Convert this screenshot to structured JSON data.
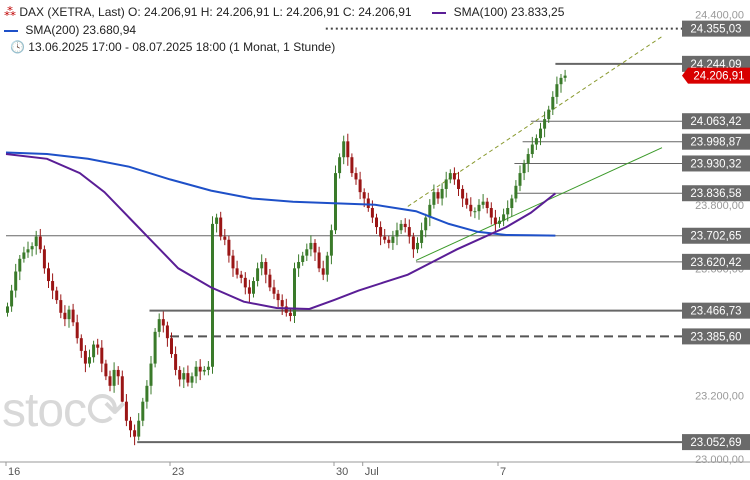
{
  "header": {
    "instrument": "DAX (XETRA, Last)",
    "ohlc": "O: 24.206,91  H: 24.206,91  L: 24.206,91  C: 24.206,91",
    "sma100_label": "SMA(100)",
    "sma100_value": "23.833,25",
    "sma200_label": "SMA(200)",
    "sma200_value": "23.680,94",
    "range": "13.06.2025 17:00 - 08.07.2025 18:00",
    "interval": "(1 Monat, 1 Stunde)"
  },
  "watermark": "stoc⟳",
  "colors": {
    "up": "#3a7a2a",
    "down": "#9a1515",
    "sma100": "#5a1e96",
    "sma200": "#1e50c8",
    "level": "#666666",
    "trend_solid": "#3c9a2a",
    "trend_dashed": "#8a9a30",
    "current": "#d80000"
  },
  "chart_data": {
    "type": "candlestick",
    "y_axis": {
      "ticks": [
        23000,
        23200,
        23400,
        23600,
        23800,
        24000,
        24200,
        24400
      ],
      "tick_labels": [
        "23.000,00",
        "23.200,00",
        "23.400,00",
        "23.600,00",
        "23.800,00",
        "24.000,00",
        "24.200,00",
        "24.400,00"
      ],
      "range": [
        22990,
        24420
      ]
    },
    "x_axis": {
      "labels": [
        {
          "text": "16",
          "bar": 0
        },
        {
          "text": "23",
          "bar": 40
        },
        {
          "text": "30",
          "bar": 80
        },
        {
          "text": "Jul",
          "bar": 87
        },
        {
          "text": "7",
          "bar": 120
        }
      ],
      "bars_total": 145
    },
    "current_price": 24206.91,
    "current_label": "24.206,91",
    "levels": [
      {
        "value": 24355.03,
        "label": "24.355,03",
        "style": "dotted",
        "from_bar": 78
      },
      {
        "value": 24244.09,
        "label": "24.244,09",
        "style": "solid",
        "from_bar": 134
      },
      {
        "value": 24063.42,
        "label": "24.063,42",
        "style": "solid",
        "from_bar": 128
      },
      {
        "value": 23998.87,
        "label": "23.998,87",
        "style": "solid",
        "from_bar": 126
      },
      {
        "value": 23930.32,
        "label": "23.930,32",
        "style": "solid",
        "from_bar": 124
      },
      {
        "value": 23836.58,
        "label": "23.836,58",
        "style": "solid",
        "from_bar": 124
      },
      {
        "value": 23702.65,
        "label": "23.702,65",
        "style": "solid",
        "from_bar": 0
      },
      {
        "value": 23620.42,
        "label": "23.620,42",
        "style": "solid",
        "from_bar": 100
      },
      {
        "value": 23466.73,
        "label": "23.466,73",
        "style": "solid",
        "from_bar": 35
      },
      {
        "value": 23385.6,
        "label": "23.385,60",
        "style": "dashed",
        "from_bar": 40
      },
      {
        "value": 23052.69,
        "label": "23.052,69",
        "style": "solid",
        "from_bar": 32
      }
    ],
    "trendlines": [
      {
        "style": "solid",
        "from": [
          100,
          23625
        ],
        "to": [
          160,
          23980
        ]
      },
      {
        "style": "dashed",
        "from": [
          98,
          23795
        ],
        "to": [
          160,
          24330
        ]
      }
    ],
    "sma200": [
      [
        0,
        23965
      ],
      [
        10,
        23960
      ],
      [
        20,
        23945
      ],
      [
        30,
        23920
      ],
      [
        40,
        23880
      ],
      [
        50,
        23845
      ],
      [
        60,
        23820
      ],
      [
        70,
        23810
      ],
      [
        80,
        23805
      ],
      [
        90,
        23800
      ],
      [
        100,
        23780
      ],
      [
        108,
        23740
      ],
      [
        115,
        23715
      ],
      [
        122,
        23705
      ],
      [
        128,
        23704
      ],
      [
        134,
        23703
      ]
    ],
    "sma100": [
      [
        0,
        23960
      ],
      [
        10,
        23945
      ],
      [
        18,
        23900
      ],
      [
        24,
        23840
      ],
      [
        30,
        23760
      ],
      [
        36,
        23680
      ],
      [
        42,
        23600
      ],
      [
        50,
        23540
      ],
      [
        58,
        23495
      ],
      [
        66,
        23475
      ],
      [
        74,
        23472
      ],
      [
        80,
        23500
      ],
      [
        86,
        23530
      ],
      [
        92,
        23555
      ],
      [
        98,
        23580
      ],
      [
        104,
        23620
      ],
      [
        110,
        23660
      ],
      [
        116,
        23695
      ],
      [
        122,
        23730
      ],
      [
        128,
        23775
      ],
      [
        134,
        23836
      ]
    ],
    "closes": [
      23480,
      23530,
      23590,
      23630,
      23650,
      23660,
      23670,
      23700,
      23660,
      23600,
      23560,
      23530,
      23500,
      23460,
      23440,
      23470,
      23430,
      23380,
      23340,
      23300,
      23320,
      23360,
      23350,
      23300,
      23260,
      23230,
      23280,
      23260,
      23180,
      23120,
      23090,
      23070,
      23120,
      23180,
      23230,
      23300,
      23400,
      23440,
      23420,
      23380,
      23330,
      23280,
      23250,
      23270,
      23240,
      23260,
      23290,
      23275,
      23280,
      23290,
      23740,
      23760,
      23700,
      23690,
      23640,
      23600,
      23580,
      23570,
      23540,
      23520,
      23560,
      23600,
      23620,
      23580,
      23540,
      23520,
      23500,
      23480,
      23460,
      23450,
      23600,
      23620,
      23640,
      23660,
      23680,
      23650,
      23600,
      23580,
      23640,
      23720,
      23900,
      23950,
      24000,
      23950,
      23900,
      23880,
      23840,
      23820,
      23790,
      23760,
      23730,
      23700,
      23690,
      23680,
      23700,
      23720,
      23740,
      23730,
      23700,
      23660,
      23680,
      23720,
      23760,
      23800,
      23840,
      23820,
      23850,
      23880,
      23900,
      23880,
      23850,
      23820,
      23800,
      23780,
      23780,
      23800,
      23810,
      23790,
      23760,
      23740,
      23750,
      23770,
      23790,
      23820,
      23860,
      23900,
      23930,
      23960,
      23990,
      24010,
      24040,
      24070,
      24100,
      24140,
      24180,
      24200,
      24207
    ]
  }
}
